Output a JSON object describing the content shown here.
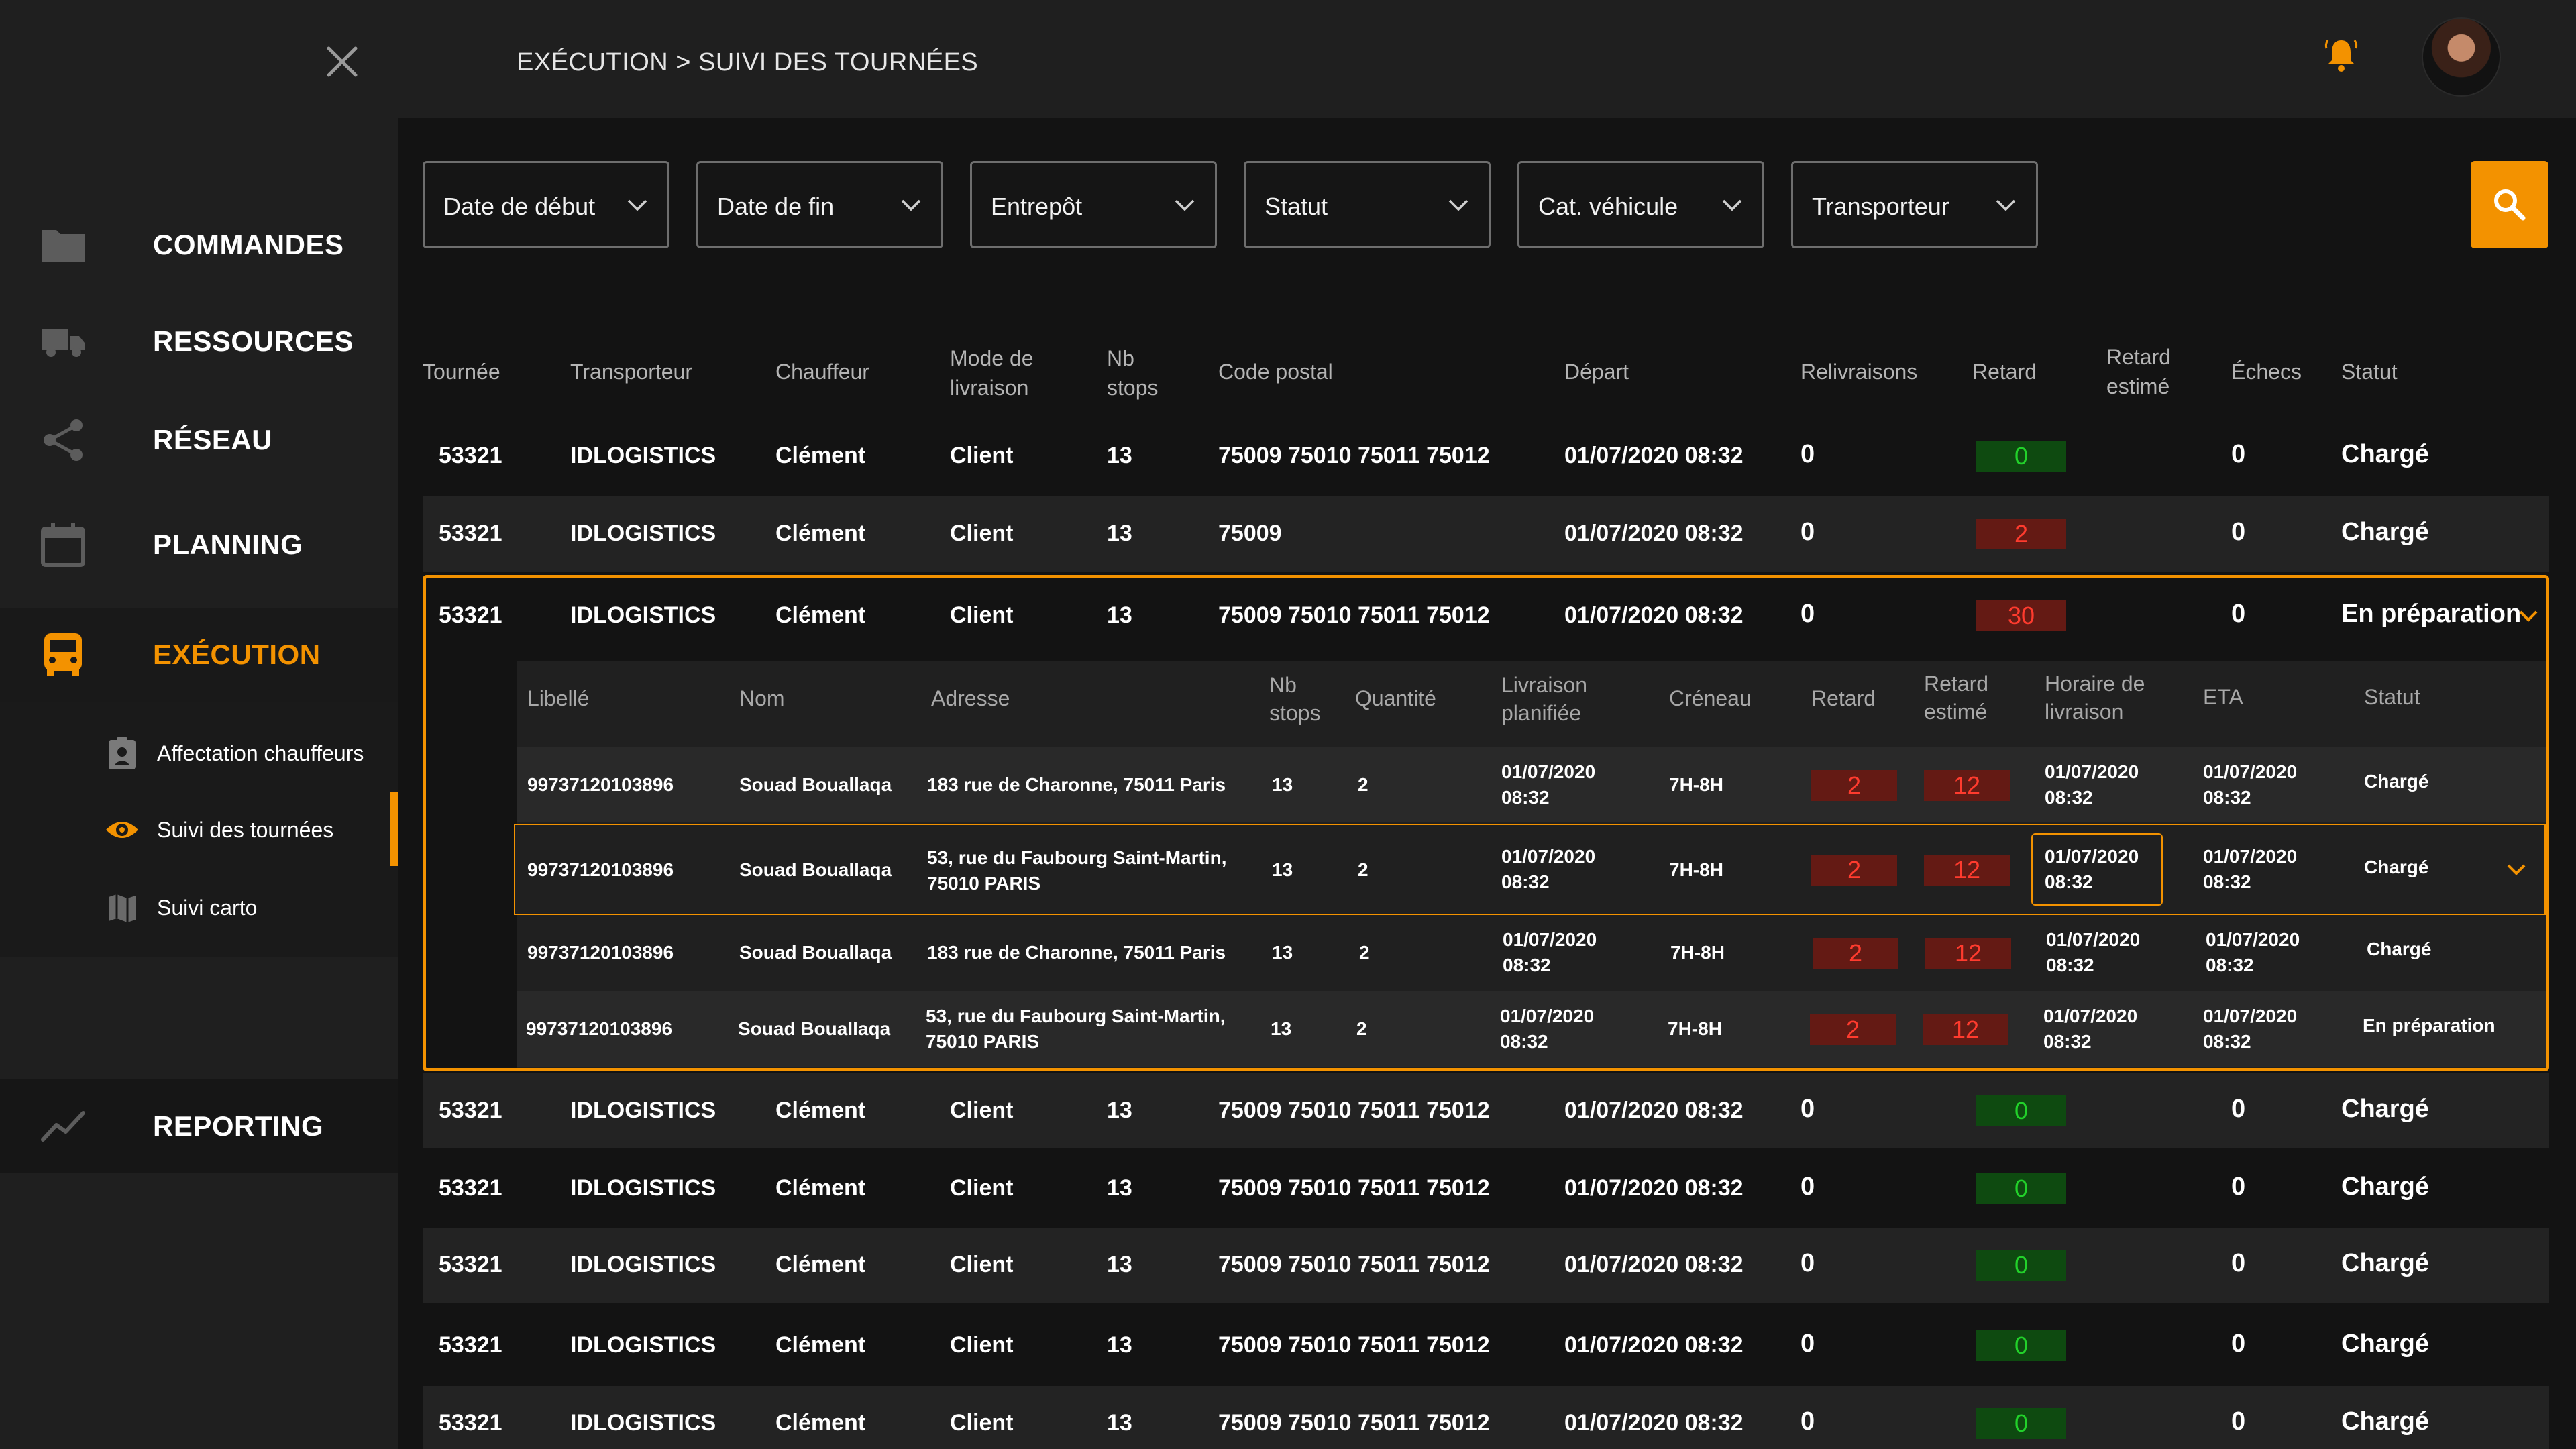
{
  "header": {
    "breadcrumb": "EXÉCUTION > SUIVI DES TOURNÉES",
    "close_icon": "close-icon",
    "bell_icon": "bell-icon"
  },
  "sidebar": {
    "items": [
      {
        "label": "COMMANDES",
        "icon": "folder-icon"
      },
      {
        "label": "RESSOURCES",
        "icon": "truck-icon"
      },
      {
        "label": "RÉSEAU",
        "icon": "share-icon"
      },
      {
        "label": "PLANNING",
        "icon": "calendar-icon"
      },
      {
        "label": "EXÉCUTION",
        "icon": "bus-icon"
      },
      {
        "label": "REPORTING",
        "icon": "trend-icon"
      }
    ],
    "sub_items": [
      {
        "label": "Affectation chauffeurs",
        "icon": "clipboard-user-icon"
      },
      {
        "label": "Suivi des tournées",
        "icon": "eye-icon"
      },
      {
        "label": "Suivi carto",
        "icon": "map-icon"
      }
    ]
  },
  "filters": [
    {
      "label": "Date de début"
    },
    {
      "label": "Date de fin"
    },
    {
      "label": "Entrepôt"
    },
    {
      "label": "Statut"
    },
    {
      "label": "Cat. véhicule"
    },
    {
      "label": "Transporteur"
    }
  ],
  "colors": {
    "accent": "#f39200",
    "ok": "#22d12a",
    "late": "#ff3b2e"
  },
  "table": {
    "headers": {
      "tournee": "Tournée",
      "transporteur": "Transporteur",
      "chauffeur": "Chauffeur",
      "mode_1": "Mode de",
      "mode_2": "livraison",
      "nb_1": "Nb",
      "nb_2": "stops",
      "code_postal": "Code postal",
      "depart": "Départ",
      "relivraisons": "Relivraisons",
      "retard": "Retard",
      "retard_est_1": "Retard",
      "retard_est_2": "estimé",
      "echecs": "Échecs",
      "statut": "Statut"
    },
    "rows": [
      {
        "tournee": "53321",
        "transporteur": "IDLOGISTICS",
        "chauffeur": "Clément",
        "mode": "Client",
        "nb": "13",
        "cp": "75009 75010 75011 75012",
        "depart": "01/07/2020 08:32",
        "reliv": "0",
        "retard": "0",
        "echecs": "0",
        "statut": "Chargé"
      },
      {
        "tournee": "53321",
        "transporteur": "IDLOGISTICS",
        "chauffeur": "Clément",
        "mode": "Client",
        "nb": "13",
        "cp": "75009",
        "depart": "01/07/2020 08:32",
        "reliv": "0",
        "retard": "2",
        "echecs": "0",
        "statut": "Chargé"
      },
      {
        "tournee": "53321",
        "transporteur": "IDLOGISTICS",
        "chauffeur": "Clément",
        "mode": "Client",
        "nb": "13",
        "cp": "75009 75010 75011 75012",
        "depart": "01/07/2020 08:32",
        "reliv": "0",
        "retard": "30",
        "echecs": "0",
        "statut": "En préparation"
      },
      {
        "tournee": "53321",
        "transporteur": "IDLOGISTICS",
        "chauffeur": "Clément",
        "mode": "Client",
        "nb": "13",
        "cp": "75009 75010 75011 75012",
        "depart": "01/07/2020 08:32",
        "reliv": "0",
        "retard": "0",
        "echecs": "0",
        "statut": "Chargé"
      },
      {
        "tournee": "53321",
        "transporteur": "IDLOGISTICS",
        "chauffeur": "Clément",
        "mode": "Client",
        "nb": "13",
        "cp": "75009 75010 75011 75012",
        "depart": "01/07/2020 08:32",
        "reliv": "0",
        "retard": "0",
        "echecs": "0",
        "statut": "Chargé"
      },
      {
        "tournee": "53321",
        "transporteur": "IDLOGISTICS",
        "chauffeur": "Clément",
        "mode": "Client",
        "nb": "13",
        "cp": "75009 75010 75011 75012",
        "depart": "01/07/2020 08:32",
        "reliv": "0",
        "retard": "0",
        "echecs": "0",
        "statut": "Chargé"
      },
      {
        "tournee": "53321",
        "transporteur": "IDLOGISTICS",
        "chauffeur": "Clément",
        "mode": "Client",
        "nb": "13",
        "cp": "75009 75010 75011 75012",
        "depart": "01/07/2020 08:32",
        "reliv": "0",
        "retard": "0",
        "echecs": "0",
        "statut": "Chargé"
      },
      {
        "tournee": "53321",
        "transporteur": "IDLOGISTICS",
        "chauffeur": "Clément",
        "mode": "Client",
        "nb": "13",
        "cp": "75009 75010 75011 75012",
        "depart": "01/07/2020 08:32",
        "reliv": "0",
        "retard": "0",
        "echecs": "0",
        "statut": "Chargé"
      }
    ]
  },
  "subtable": {
    "headers": {
      "libelle": "Libellé",
      "nom": "Nom",
      "adresse": "Adresse",
      "nb_1": "Nb",
      "nb_2": "stops",
      "quantite": "Quantité",
      "liv_1": "Livraison",
      "liv_2": "planifiée",
      "creneau": "Créneau",
      "retard": "Retard",
      "ret_est_1": "Retard",
      "ret_est_2": "estimé",
      "hor_1": "Horaire de",
      "hor_2": "livraison",
      "eta": "ETA",
      "statut": "Statut"
    },
    "rows": [
      {
        "libelle": "99737120103896",
        "nom": "Souad Bouallaqa",
        "adresse_1": "183 rue de Charonne, 75011 Paris",
        "adresse_2": "",
        "nb": "13",
        "qte": "2",
        "liv_date": "01/07/2020",
        "liv_time": "08:32",
        "creneau": "7H-8H",
        "retard": "2",
        "retard_est": "12",
        "hor_date": "01/07/2020",
        "hor_time": "08:32",
        "eta_date": "01/07/2020",
        "eta_time": "08:32",
        "statut": "Chargé"
      },
      {
        "libelle": "99737120103896",
        "nom": "Souad Bouallaqa",
        "adresse_1": "53, rue du Faubourg Saint-Martin,",
        "adresse_2": "75010 PARIS",
        "nb": "13",
        "qte": "2",
        "liv_date": "01/07/2020",
        "liv_time": "08:32",
        "creneau": "7H-8H",
        "retard": "2",
        "retard_est": "12",
        "hor_date": "01/07/2020",
        "hor_time": "08:32",
        "eta_date": "01/07/2020",
        "eta_time": "08:32",
        "statut": "Chargé"
      },
      {
        "libelle": "99737120103896",
        "nom": "Souad Bouallaqa",
        "adresse_1": "183 rue de Charonne, 75011 Paris",
        "adresse_2": "",
        "nb": "13",
        "qte": "2",
        "liv_date": "01/07/2020",
        "liv_time": "08:32",
        "creneau": "7H-8H",
        "retard": "2",
        "retard_est": "12",
        "hor_date": "01/07/2020",
        "hor_time": "08:32",
        "eta_date": "01/07/2020",
        "eta_time": "08:32",
        "statut": "Chargé"
      },
      {
        "libelle": "99737120103896",
        "nom": "Souad Bouallaqa",
        "adresse_1": "53, rue du Faubourg Saint-Martin,",
        "adresse_2": "75010 PARIS",
        "nb": "13",
        "qte": "2",
        "liv_date": "01/07/2020",
        "liv_time": "08:32",
        "creneau": "7H-8H",
        "retard": "2",
        "retard_est": "12",
        "hor_date": "01/07/2020",
        "hor_time": "08:32",
        "eta_date": "01/07/2020",
        "eta_time": "08:32",
        "statut": "En préparation"
      }
    ]
  }
}
